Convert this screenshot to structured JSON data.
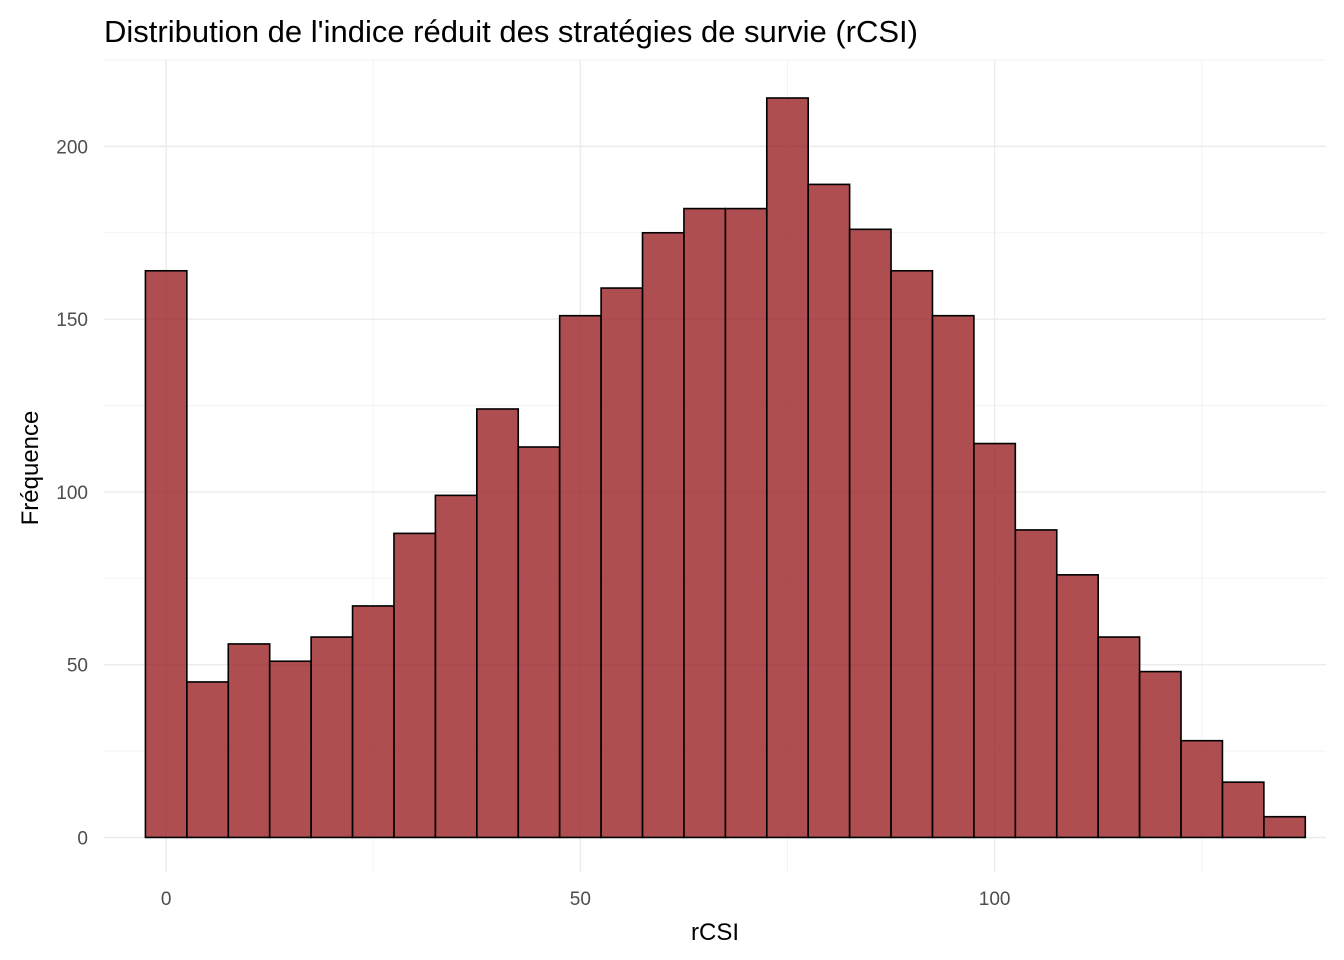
{
  "chart_data": {
    "type": "bar",
    "title": "Distribution de l'indice réduit des stratégies de survie (rCSI)",
    "xlabel": "rCSI",
    "ylabel": "Fréquence",
    "x_ticks": [
      0,
      50,
      100
    ],
    "y_ticks": [
      0,
      50,
      100,
      150,
      200
    ],
    "xlim": [
      -7.5,
      140
    ],
    "ylim": [
      -10,
      225
    ],
    "bin_width": 5,
    "bin_centers": [
      0,
      5,
      10,
      15,
      20,
      25,
      30,
      35,
      40,
      45,
      50,
      55,
      60,
      65,
      70,
      75,
      80,
      85,
      90,
      95,
      100,
      105,
      110,
      115,
      120,
      125,
      130,
      135
    ],
    "values": [
      164,
      45,
      56,
      51,
      58,
      67,
      88,
      99,
      124,
      113,
      151,
      159,
      175,
      182,
      182,
      214,
      189,
      176,
      164,
      151,
      114,
      89,
      76,
      58,
      48,
      28,
      16,
      6
    ],
    "bar_fill": "#9a2226",
    "bar_outline": "#000000",
    "grid": true,
    "legend": "none"
  }
}
